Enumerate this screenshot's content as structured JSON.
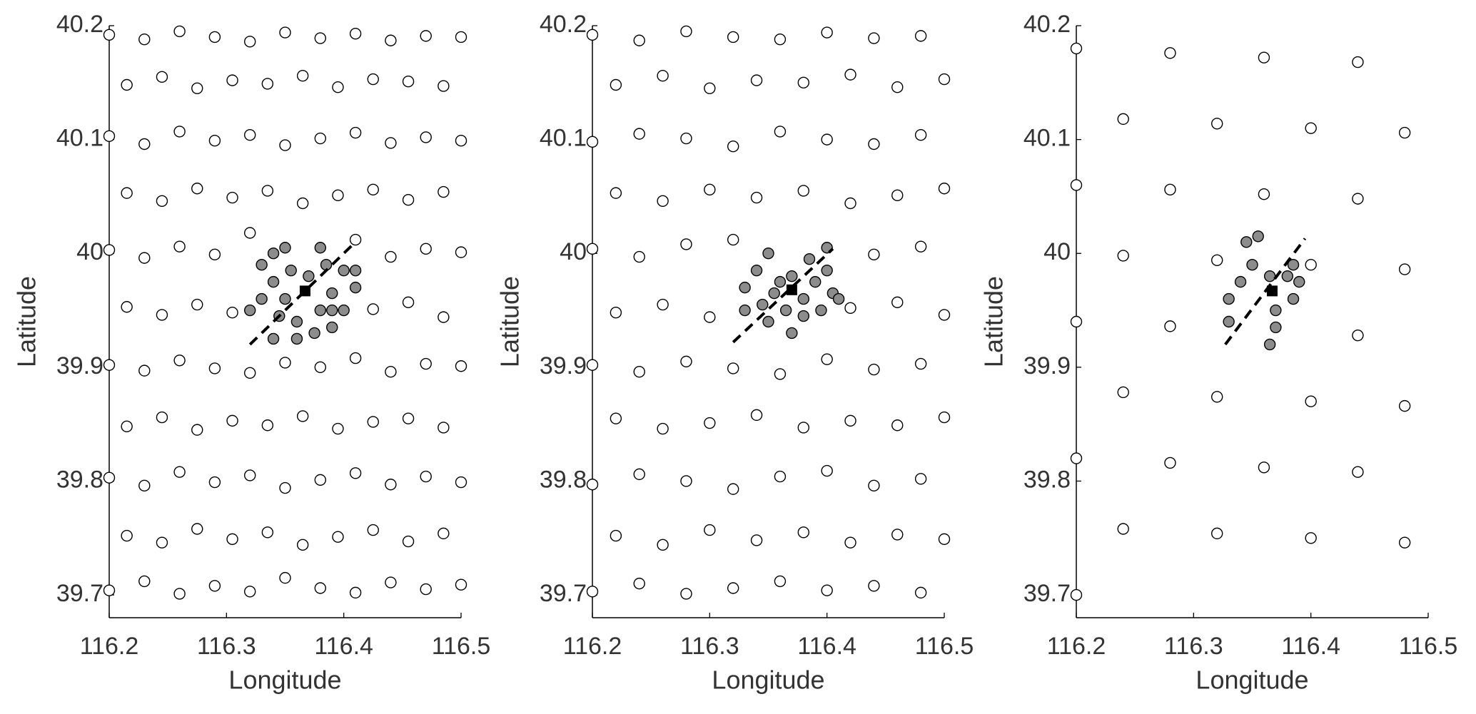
{
  "chart_data": [
    {
      "type": "scatter",
      "xlabel": "Longitude",
      "ylabel": "Latitude",
      "xlim": [
        116.2,
        116.5
      ],
      "ylim": [
        39.68,
        40.2
      ],
      "xticks": [
        116.2,
        116.3,
        116.4,
        116.5
      ],
      "yticks": [
        39.7,
        39.8,
        39.9,
        40,
        40.1,
        40.2
      ],
      "series": [
        {
          "marker": "o",
          "color": "#ffffff",
          "edgecolor": "#000000",
          "x": [
            116.2,
            116.23,
            116.26,
            116.29,
            116.32,
            116.35,
            116.38,
            116.41,
            116.44,
            116.47,
            116.5,
            116.215,
            116.245,
            116.275,
            116.305,
            116.335,
            116.365,
            116.395,
            116.425,
            116.455,
            116.485,
            116.2,
            116.23,
            116.26,
            116.29,
            116.32,
            116.35,
            116.38,
            116.41,
            116.44,
            116.47,
            116.5,
            116.215,
            116.245,
            116.275,
            116.305,
            116.335,
            116.365,
            116.395,
            116.425,
            116.455,
            116.485,
            116.2,
            116.23,
            116.26,
            116.29,
            116.32,
            116.35,
            116.38,
            116.41,
            116.44,
            116.47,
            116.5,
            116.215,
            116.245,
            116.275,
            116.305,
            116.425,
            116.455,
            116.485,
            116.2,
            116.23,
            116.26,
            116.29,
            116.32,
            116.41,
            116.44,
            116.47,
            116.5,
            116.215,
            116.245,
            116.275,
            116.305,
            116.335,
            116.365,
            116.395,
            116.425,
            116.455,
            116.485,
            116.2,
            116.23,
            116.26,
            116.29,
            116.32,
            116.35,
            116.38,
            116.41,
            116.44,
            116.47,
            116.5,
            116.215,
            116.245,
            116.275,
            116.305,
            116.335,
            116.365,
            116.395,
            116.425,
            116.455,
            116.485,
            116.2,
            116.23,
            116.26,
            116.29,
            116.32,
            116.35,
            116.38,
            116.41,
            116.44,
            116.47,
            116.5
          ],
          "values": [
            39.704,
            39.712,
            39.701,
            39.708,
            39.703,
            39.715,
            39.706,
            39.702,
            39.711,
            39.705,
            39.709,
            39.752,
            39.746,
            39.758,
            39.749,
            39.755,
            39.744,
            39.751,
            39.757,
            39.747,
            39.754,
            39.803,
            39.796,
            39.808,
            39.799,
            39.805,
            39.794,
            39.801,
            39.807,
            39.797,
            39.804,
            39.799,
            39.848,
            39.856,
            39.845,
            39.853,
            39.849,
            39.857,
            39.846,
            39.852,
            39.855,
            39.847,
            39.902,
            39.897,
            39.906,
            39.899,
            39.895,
            39.904,
            39.9,
            39.908,
            39.896,
            39.903,
            39.901,
            39.953,
            39.946,
            39.955,
            39.948,
            39.951,
            39.957,
            39.944,
            40.003,
            39.996,
            40.006,
            39.999,
            40.018,
            40.012,
            39.997,
            40.004,
            40.001,
            40.053,
            40.046,
            40.057,
            40.049,
            40.055,
            40.044,
            40.051,
            40.056,
            40.047,
            40.054,
            40.103,
            40.096,
            40.107,
            40.099,
            40.104,
            40.095,
            40.101,
            40.106,
            40.097,
            40.102,
            40.099,
            40.148,
            40.155,
            40.145,
            40.152,
            40.149,
            40.156,
            40.146,
            40.153,
            40.151,
            40.147,
            40.192,
            40.188,
            40.195,
            40.19,
            40.186,
            40.194,
            40.189,
            40.193,
            40.187,
            40.191,
            40.19
          ]
        },
        {
          "marker": "o",
          "color": "#8c8c8c",
          "edgecolor": "#000000",
          "x": [
            116.33,
            116.34,
            116.35,
            116.34,
            116.33,
            116.32,
            116.345,
            116.36,
            116.375,
            116.39,
            116.4,
            116.41,
            116.4,
            116.385,
            116.38,
            116.355,
            116.37,
            116.39,
            116.35,
            116.38,
            116.36,
            116.34,
            116.39,
            116.41
          ],
          "values": [
            39.99,
            40.0,
            40.005,
            39.975,
            39.96,
            39.95,
            39.945,
            39.94,
            39.93,
            39.935,
            39.95,
            39.97,
            39.985,
            39.99,
            40.005,
            39.985,
            39.98,
            39.965,
            39.96,
            39.95,
            39.925,
            39.925,
            39.95,
            39.985
          ]
        },
        {
          "marker": "s",
          "color": "#000000",
          "edgecolor": "#000000",
          "x": [
            116.367
          ],
          "values": [
            39.967
          ]
        },
        {
          "line": "dashed",
          "color": "#000000",
          "x": [
            116.32,
            116.41
          ],
          "values": [
            39.92,
            40.01
          ]
        }
      ]
    },
    {
      "type": "scatter",
      "xlabel": "Longitude",
      "ylabel": "Latitude",
      "xlim": [
        116.2,
        116.5
      ],
      "ylim": [
        39.68,
        40.2
      ],
      "xticks": [
        116.2,
        116.3,
        116.4,
        116.5
      ],
      "yticks": [
        39.7,
        39.8,
        39.9,
        40,
        40.1,
        40.2
      ],
      "series": [
        {
          "marker": "o",
          "color": "#ffffff",
          "edgecolor": "#000000",
          "x": [
            116.2,
            116.24,
            116.28,
            116.32,
            116.36,
            116.4,
            116.44,
            116.48,
            116.22,
            116.26,
            116.3,
            116.34,
            116.38,
            116.42,
            116.46,
            116.5,
            116.2,
            116.24,
            116.28,
            116.32,
            116.36,
            116.4,
            116.44,
            116.48,
            116.22,
            116.26,
            116.3,
            116.34,
            116.38,
            116.42,
            116.46,
            116.5,
            116.2,
            116.24,
            116.28,
            116.32,
            116.36,
            116.4,
            116.44,
            116.48,
            116.22,
            116.26,
            116.3,
            116.42,
            116.46,
            116.5,
            116.2,
            116.24,
            116.28,
            116.32,
            116.44,
            116.48,
            116.22,
            116.26,
            116.3,
            116.34,
            116.38,
            116.42,
            116.46,
            116.5,
            116.2,
            116.24,
            116.28,
            116.32,
            116.36,
            116.4,
            116.44,
            116.48,
            116.22,
            116.26,
            116.3,
            116.34,
            116.38,
            116.42,
            116.46,
            116.5,
            116.2,
            116.24,
            116.28,
            116.32,
            116.36,
            116.4,
            116.44,
            116.48
          ],
          "values": [
            39.703,
            39.71,
            39.701,
            39.706,
            39.712,
            39.704,
            39.708,
            39.702,
            39.752,
            39.744,
            39.757,
            39.748,
            39.755,
            39.746,
            39.753,
            39.749,
            39.797,
            39.806,
            39.8,
            39.793,
            39.804,
            39.809,
            39.796,
            39.802,
            39.855,
            39.846,
            39.851,
            39.858,
            39.847,
            39.853,
            39.849,
            39.856,
            39.902,
            39.896,
            39.905,
            39.899,
            39.894,
            39.907,
            39.898,
            39.903,
            39.948,
            39.955,
            39.944,
            39.952,
            39.957,
            39.946,
            40.004,
            39.997,
            40.008,
            40.012,
            39.999,
            40.006,
            40.053,
            40.046,
            40.056,
            40.049,
            40.055,
            40.044,
            40.051,
            40.057,
            40.098,
            40.105,
            40.101,
            40.094,
            40.107,
            40.1,
            40.096,
            40.104,
            40.148,
            40.156,
            40.145,
            40.152,
            40.15,
            40.157,
            40.146,
            40.153,
            40.192,
            40.187,
            40.195,
            40.19,
            40.188,
            40.194,
            40.189,
            40.191
          ]
        },
        {
          "marker": "o",
          "color": "#8c8c8c",
          "edgecolor": "#000000",
          "x": [
            116.33,
            116.33,
            116.345,
            116.35,
            116.34,
            116.35,
            116.36,
            116.365,
            116.37,
            116.38,
            116.38,
            116.39,
            116.385,
            116.4,
            116.4,
            116.405,
            116.41,
            116.355,
            116.395,
            116.37
          ],
          "values": [
            39.97,
            39.95,
            39.955,
            39.94,
            39.985,
            40.0,
            39.975,
            39.95,
            39.93,
            39.945,
            39.96,
            39.975,
            39.995,
            40.005,
            39.985,
            39.965,
            39.96,
            39.965,
            39.95,
            39.98
          ]
        },
        {
          "marker": "s",
          "color": "#000000",
          "edgecolor": "#000000",
          "x": [
            116.37
          ],
          "values": [
            39.968
          ]
        },
        {
          "line": "dashed",
          "color": "#000000",
          "x": [
            116.32,
            116.405
          ],
          "values": [
            39.922,
            40.004
          ]
        }
      ]
    },
    {
      "type": "scatter",
      "xlabel": "Longitude",
      "ylabel": "Latitude",
      "xlim": [
        116.2,
        116.5
      ],
      "ylim": [
        39.68,
        40.2
      ],
      "xticks": [
        116.2,
        116.3,
        116.4,
        116.5
      ],
      "yticks": [
        39.7,
        39.8,
        39.9,
        40,
        40.1,
        40.2
      ],
      "series": [
        {
          "marker": "o",
          "color": "#ffffff",
          "edgecolor": "#000000",
          "x": [
            116.2,
            116.24,
            116.28,
            116.32,
            116.4,
            116.44,
            116.48,
            116.2,
            116.24,
            116.28,
            116.32,
            116.36,
            116.4,
            116.44,
            116.2,
            116.24,
            116.28,
            116.32,
            116.36,
            116.2,
            116.24,
            116.28,
            116.2,
            116.32,
            116.36,
            116.4,
            116.44,
            116.48,
            116.4,
            116.44,
            116.48,
            116.48
          ],
          "values": [
            39.7,
            39.758,
            39.816,
            39.874,
            39.99,
            40.048,
            40.106,
            39.82,
            39.878,
            39.936,
            39.994,
            40.052,
            40.11,
            40.168,
            39.94,
            39.998,
            40.056,
            40.114,
            40.172,
            40.06,
            40.118,
            40.176,
            40.18,
            39.754,
            39.812,
            39.87,
            39.928,
            39.986,
            39.75,
            39.808,
            39.866,
            39.746
          ]
        },
        {
          "marker": "o",
          "color": "#8c8c8c",
          "edgecolor": "#000000",
          "x": [
            116.33,
            116.33,
            116.34,
            116.35,
            116.345,
            116.355,
            116.365,
            116.37,
            116.37,
            116.365,
            116.385,
            116.39,
            116.38,
            116.385
          ],
          "values": [
            39.96,
            39.94,
            39.975,
            39.99,
            40.01,
            40.015,
            39.98,
            39.95,
            39.935,
            39.92,
            39.96,
            39.975,
            39.98,
            39.99
          ]
        },
        {
          "marker": "s",
          "color": "#000000",
          "edgecolor": "#000000",
          "x": [
            116.367
          ],
          "values": [
            39.967
          ]
        },
        {
          "line": "dashed",
          "color": "#000000",
          "x": [
            116.327,
            116.395
          ],
          "values": [
            39.92,
            40.013
          ]
        }
      ]
    }
  ]
}
